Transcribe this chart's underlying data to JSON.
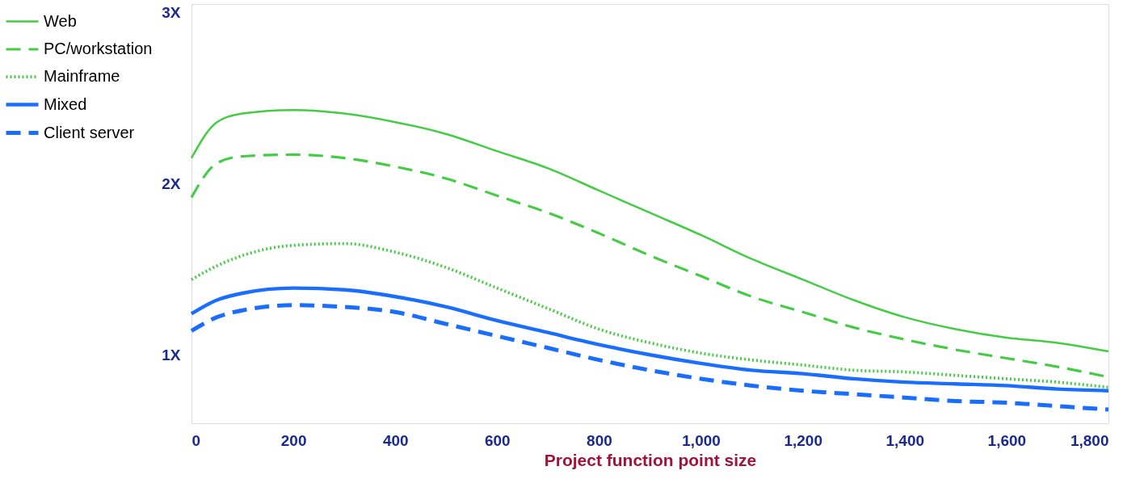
{
  "chart_data": {
    "type": "line",
    "xlabel": "Project function point size",
    "x": [
      0,
      50,
      100,
      200,
      300,
      400,
      500,
      600,
      700,
      800,
      900,
      1000,
      1100,
      1200,
      1300,
      1400,
      1500,
      1600,
      1700,
      1800
    ],
    "series": [
      {
        "name": "Web",
        "color": "#44cc44",
        "line_style": "solid",
        "values": [
          2.15,
          2.36,
          2.41,
          2.43,
          2.41,
          2.36,
          2.29,
          2.19,
          2.09,
          1.96,
          1.83,
          1.7,
          1.56,
          1.44,
          1.32,
          1.22,
          1.15,
          1.1,
          1.07,
          1.02
        ]
      },
      {
        "name": "PC/workstation",
        "color": "#44cc44",
        "line_style": "dashed",
        "values": [
          1.92,
          2.12,
          2.16,
          2.17,
          2.15,
          2.1,
          2.03,
          1.93,
          1.83,
          1.71,
          1.58,
          1.46,
          1.34,
          1.25,
          1.16,
          1.09,
          1.03,
          0.98,
          0.93,
          0.87
        ]
      },
      {
        "name": "Mainframe",
        "color": "#44cc44",
        "line_style": "dotted",
        "values": [
          1.44,
          1.52,
          1.58,
          1.64,
          1.65,
          1.6,
          1.51,
          1.39,
          1.27,
          1.15,
          1.07,
          1.01,
          0.97,
          0.94,
          0.91,
          0.9,
          0.88,
          0.86,
          0.84,
          0.81
        ]
      },
      {
        "name": "Mixed",
        "color": "#1a6eff",
        "line_style": "solid",
        "values": [
          1.24,
          1.32,
          1.36,
          1.39,
          1.38,
          1.34,
          1.28,
          1.2,
          1.13,
          1.06,
          1.0,
          0.95,
          0.91,
          0.89,
          0.86,
          0.84,
          0.83,
          0.82,
          0.8,
          0.79
        ]
      },
      {
        "name": "Client server",
        "color": "#1a6eff",
        "line_style": "dashed",
        "values": [
          1.14,
          1.22,
          1.26,
          1.29,
          1.28,
          1.25,
          1.18,
          1.11,
          1.04,
          0.97,
          0.91,
          0.86,
          0.82,
          0.79,
          0.77,
          0.75,
          0.73,
          0.72,
          0.7,
          0.68
        ]
      }
    ],
    "xlim": [
      0,
      1800
    ],
    "xticks": [
      0,
      200,
      400,
      600,
      800,
      {
        "value": 1000,
        "label": "1,000"
      },
      {
        "value": 1200,
        "label": "1,200"
      },
      {
        "value": 1400,
        "label": "1,400"
      },
      {
        "value": 1600,
        "label": "1,600"
      },
      {
        "value": 1800,
        "label": "1,800"
      }
    ],
    "ylim": [
      0.6,
      3.05
    ],
    "yticks": [
      {
        "value": 1,
        "label": "1X"
      },
      {
        "value": 2,
        "label": "2X"
      },
      {
        "value": 3,
        "label": "3X"
      }
    ],
    "grid": false,
    "legend": "left",
    "marker": "none"
  }
}
